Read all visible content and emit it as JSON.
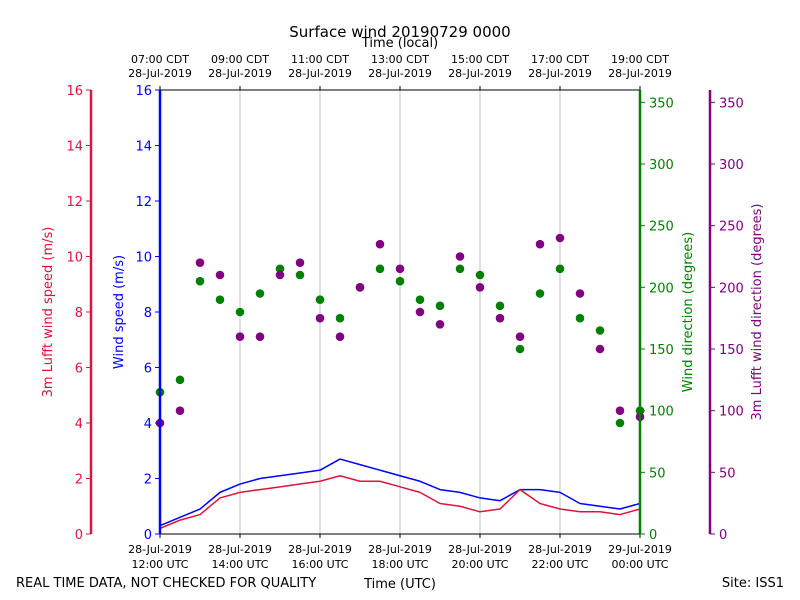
{
  "chart_data": {
    "type": "scatter",
    "title": "Surface wind 20190729 0000",
    "top_axis_label": "Time (local)",
    "xlabel": "Time (UTC)",
    "footer_left": "REAL TIME DATA, NOT CHECKED FOR QUALITY",
    "footer_right": "Site: ISS1",
    "x_range_hours_utc": [
      12.0,
      24.0
    ],
    "x_ticks_hours_utc": [
      12,
      14,
      16,
      18,
      20,
      22,
      24
    ],
    "bottom_tick_labels": [
      [
        "28-Jul-2019",
        "12:00 UTC"
      ],
      [
        "28-Jul-2019",
        "14:00 UTC"
      ],
      [
        "28-Jul-2019",
        "16:00 UTC"
      ],
      [
        "28-Jul-2019",
        "18:00 UTC"
      ],
      [
        "28-Jul-2019",
        "20:00 UTC"
      ],
      [
        "28-Jul-2019",
        "22:00 UTC"
      ],
      [
        "29-Jul-2019",
        "00:00 UTC"
      ]
    ],
    "top_tick_labels": [
      [
        "07:00 CDT",
        "28-Jul-2019"
      ],
      [
        "09:00 CDT",
        "28-Jul-2019"
      ],
      [
        "11:00 CDT",
        "28-Jul-2019"
      ],
      [
        "13:00 CDT",
        "28-Jul-2019"
      ],
      [
        "15:00 CDT",
        "28-Jul-2019"
      ],
      [
        "17:00 CDT",
        "28-Jul-2019"
      ],
      [
        "19:00 CDT",
        "28-Jul-2019"
      ]
    ],
    "axes": {
      "lufft_speed": {
        "label": "3m Lufft wind speed (m/s)",
        "color": "#dc143c",
        "ylim": [
          0,
          16
        ],
        "ticks": [
          0,
          2,
          4,
          6,
          8,
          10,
          12,
          14,
          16
        ]
      },
      "speed": {
        "label": "Wind speed (m/s)",
        "color": "#0000ff",
        "ylim": [
          0,
          16
        ],
        "ticks": [
          0,
          2,
          4,
          6,
          8,
          10,
          12,
          14,
          16
        ]
      },
      "direction": {
        "label": "Wind direction (degrees)",
        "color": "#008000",
        "ylim": [
          0,
          360
        ],
        "ticks": [
          0,
          50,
          100,
          150,
          200,
          250,
          300,
          350
        ]
      },
      "lufft_direction": {
        "label": "3m Lufft wind direction (degrees)",
        "color": "#800080",
        "ylim": [
          0,
          360
        ],
        "ticks": [
          0,
          50,
          100,
          150,
          200,
          250,
          300,
          350
        ]
      }
    },
    "series": [
      {
        "name": "Wind speed",
        "axis": "speed",
        "kind": "line",
        "color": "#0000ff",
        "x_hours_utc": [
          12.0,
          12.5,
          13.0,
          13.5,
          14.0,
          14.5,
          15.0,
          15.5,
          16.0,
          16.5,
          17.0,
          17.5,
          18.0,
          18.5,
          19.0,
          19.5,
          20.0,
          20.5,
          21.0,
          21.5,
          22.0,
          22.5,
          23.0,
          23.5,
          24.0
        ],
        "values": [
          0.3,
          0.6,
          0.9,
          1.5,
          1.8,
          2.0,
          2.1,
          2.2,
          2.3,
          2.7,
          2.5,
          2.3,
          2.1,
          1.9,
          1.6,
          1.5,
          1.3,
          1.2,
          1.6,
          1.6,
          1.5,
          1.1,
          1.0,
          0.9,
          1.1
        ]
      },
      {
        "name": "3m Lufft wind speed",
        "axis": "lufft_speed",
        "kind": "line",
        "color": "#dc143c",
        "x_hours_utc": [
          12.0,
          12.5,
          13.0,
          13.5,
          14.0,
          14.5,
          15.0,
          15.5,
          16.0,
          16.5,
          17.0,
          17.5,
          18.0,
          18.5,
          19.0,
          19.5,
          20.0,
          20.5,
          21.0,
          21.5,
          22.0,
          22.5,
          23.0,
          23.5,
          24.0
        ],
        "values": [
          0.2,
          0.5,
          0.7,
          1.3,
          1.5,
          1.6,
          1.7,
          1.8,
          1.9,
          2.1,
          1.9,
          1.9,
          1.7,
          1.5,
          1.1,
          1.0,
          0.8,
          0.9,
          1.6,
          1.1,
          0.9,
          0.8,
          0.8,
          0.7,
          0.9
        ]
      },
      {
        "name": "Wind direction",
        "axis": "direction",
        "kind": "scatter",
        "color": "#008000",
        "x_hours_utc": [
          12.0,
          12.5,
          13.0,
          13.5,
          14.0,
          14.5,
          15.0,
          15.5,
          16.0,
          16.5,
          17.0,
          17.5,
          18.0,
          18.5,
          19.0,
          19.5,
          20.0,
          20.5,
          21.0,
          21.5,
          22.0,
          22.5,
          23.0,
          23.5,
          24.0
        ],
        "values": [
          115,
          125,
          205,
          190,
          180,
          195,
          215,
          210,
          190,
          175,
          200,
          215,
          205,
          190,
          185,
          215,
          210,
          185,
          150,
          195,
          215,
          175,
          165,
          90,
          100
        ]
      },
      {
        "name": "3m Lufft wind direction",
        "axis": "lufft_direction",
        "kind": "scatter",
        "color": "#800080",
        "x_hours_utc": [
          12.0,
          12.5,
          13.0,
          13.5,
          14.0,
          14.5,
          15.0,
          15.5,
          16.0,
          16.5,
          17.0,
          17.5,
          18.0,
          18.5,
          19.0,
          19.5,
          20.0,
          20.5,
          21.0,
          21.5,
          22.0,
          22.5,
          23.0,
          23.5,
          24.0
        ],
        "values": [
          90,
          100,
          220,
          210,
          160,
          160,
          210,
          220,
          175,
          160,
          200,
          235,
          215,
          180,
          170,
          225,
          200,
          175,
          160,
          235,
          240,
          195,
          150,
          100,
          95
        ]
      }
    ]
  }
}
